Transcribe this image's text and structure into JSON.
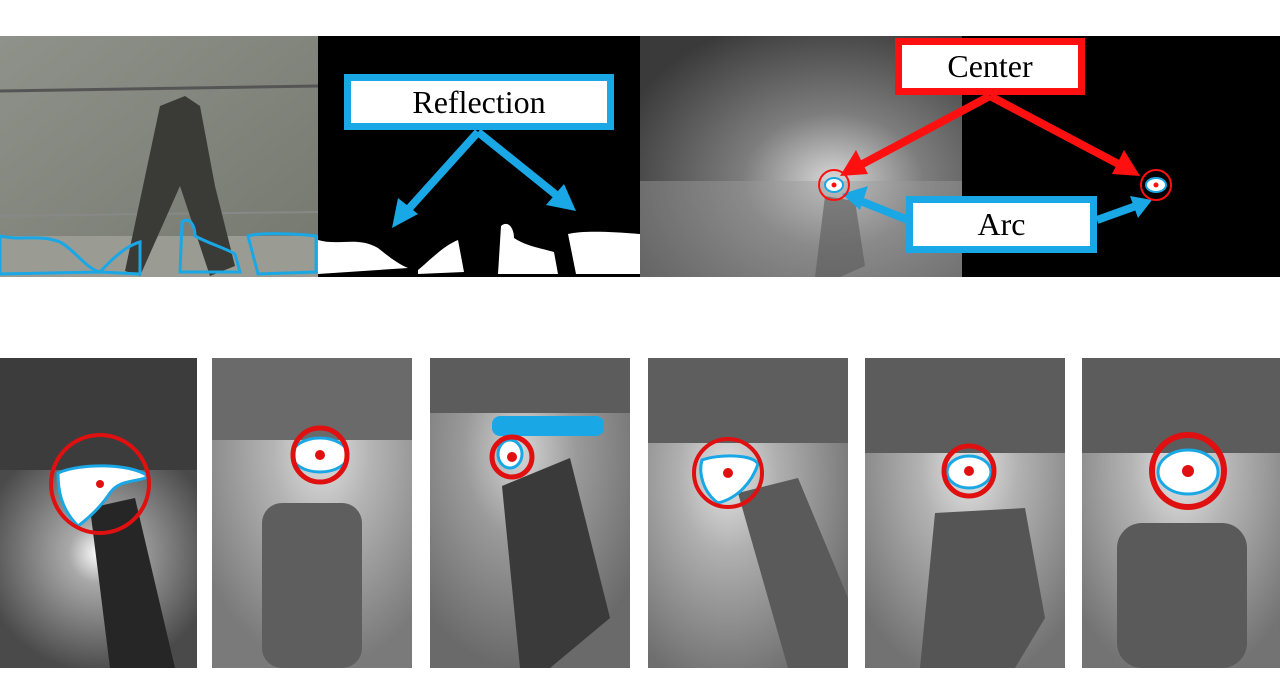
{
  "callouts": {
    "reflection": "Reflection",
    "center": "Center",
    "arc": "Arc"
  },
  "colors": {
    "reflection_outline": "#1aa7e6",
    "center_marker": "#ff1010",
    "background": "#ffffff"
  },
  "figure": {
    "top_row_panels": [
      "original-reflection-frame",
      "reflection-mask",
      "arc-frame",
      "arc-mask"
    ],
    "bottom_row_panels": [
      "arc-detection-1",
      "arc-detection-2",
      "arc-detection-3",
      "arc-detection-4",
      "arc-detection-5",
      "arc-detection-6"
    ]
  }
}
